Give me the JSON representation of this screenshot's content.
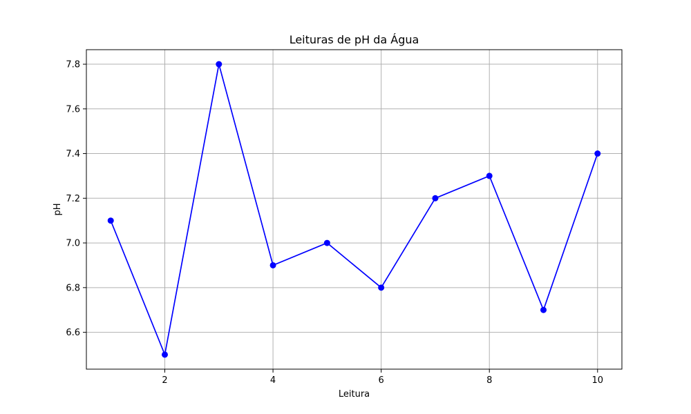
{
  "chart_data": {
    "type": "line",
    "title": "Leituras de pH da Água",
    "xlabel": "Leitura",
    "ylabel": "pH",
    "x": [
      1,
      2,
      3,
      4,
      5,
      6,
      7,
      8,
      9,
      10
    ],
    "series": [
      {
        "name": "pH",
        "values": [
          7.1,
          6.5,
          7.8,
          6.9,
          7.0,
          6.8,
          7.2,
          7.3,
          6.7,
          7.4
        ],
        "color": "#0000ff",
        "marker": "circle"
      }
    ],
    "xlim": [
      0.55,
      10.45
    ],
    "ylim": [
      6.435,
      7.865
    ],
    "xticks": [
      2,
      4,
      6,
      8,
      10
    ],
    "xtick_labels": [
      "2",
      "4",
      "6",
      "8",
      "10"
    ],
    "yticks": [
      6.6,
      6.8,
      7.0,
      7.2,
      7.4,
      7.6,
      7.8
    ],
    "ytick_labels": [
      "6.6",
      "6.8",
      "7.0",
      "7.2",
      "7.4",
      "7.6",
      "7.8"
    ],
    "grid": true,
    "legend": false
  }
}
